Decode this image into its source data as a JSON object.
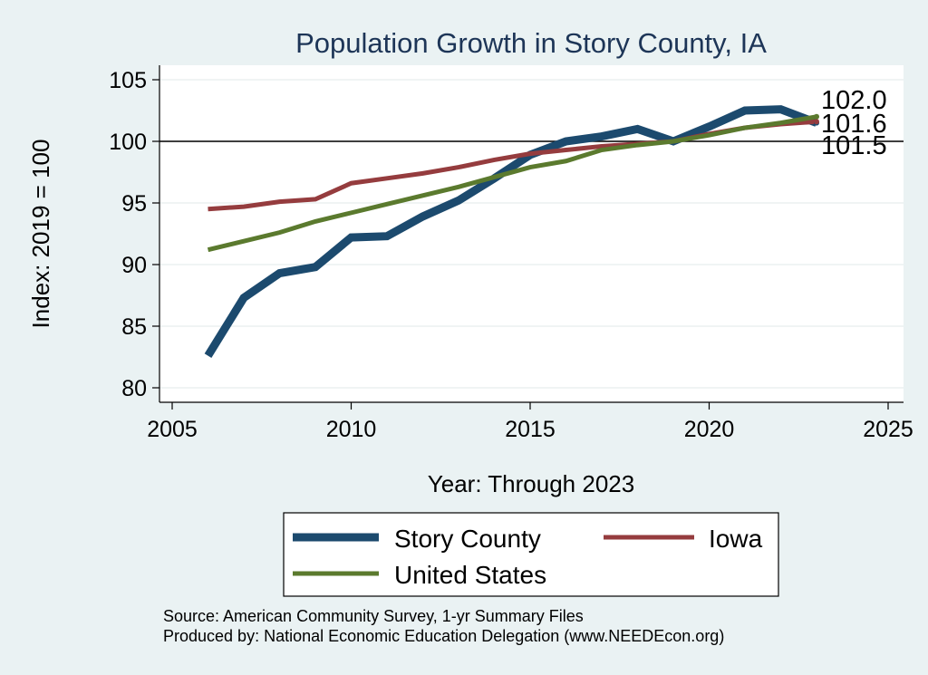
{
  "chart_data": {
    "type": "line",
    "title": "Population Growth in Story County, IA",
    "xlabel": "Year: Through 2023",
    "ylabel": "Index: 2019 = 100",
    "xlim": [
      2005,
      2025
    ],
    "ylim": [
      79,
      105.5
    ],
    "xticks": [
      2005,
      2010,
      2015,
      2020,
      2025
    ],
    "yticks": [
      80,
      85,
      90,
      95,
      100,
      105
    ],
    "reference_line": 100,
    "x": [
      2006,
      2007,
      2008,
      2009,
      2010,
      2011,
      2012,
      2013,
      2014,
      2015,
      2016,
      2017,
      2018,
      2019,
      2020,
      2021,
      2022,
      2023
    ],
    "series": [
      {
        "name": "Story  County",
        "color": "#1c4a6e",
        "values": [
          82.6,
          87.3,
          89.3,
          89.8,
          92.2,
          92.3,
          93.9,
          95.2,
          97.0,
          98.9,
          100.0,
          100.4,
          101.0,
          100.0,
          101.2,
          102.5,
          102.6,
          101.5
        ],
        "end_label": "101.5"
      },
      {
        "name": "Iowa",
        "color": "#953c3e",
        "values": [
          94.5,
          94.7,
          95.1,
          95.3,
          96.6,
          97.0,
          97.4,
          97.9,
          98.5,
          99.0,
          99.3,
          99.6,
          99.8,
          100.0,
          100.6,
          101.1,
          101.4,
          101.6
        ],
        "end_label": "101.6"
      },
      {
        "name": "United States",
        "color": "#5b7a2e",
        "values": [
          91.2,
          91.9,
          92.6,
          93.5,
          94.2,
          94.9,
          95.6,
          96.3,
          97.1,
          97.9,
          98.4,
          99.3,
          99.7,
          100.0,
          100.5,
          101.1,
          101.5,
          102.0
        ],
        "end_label": "102.0"
      }
    ],
    "legend_order": [
      0,
      1,
      2
    ],
    "legend_position": "bottom",
    "notes": [
      "Source: American Community Survey, 1-yr Summary Files",
      "Produced by: National Economic Education Delegation (www.NEEDEcon.org)"
    ]
  }
}
